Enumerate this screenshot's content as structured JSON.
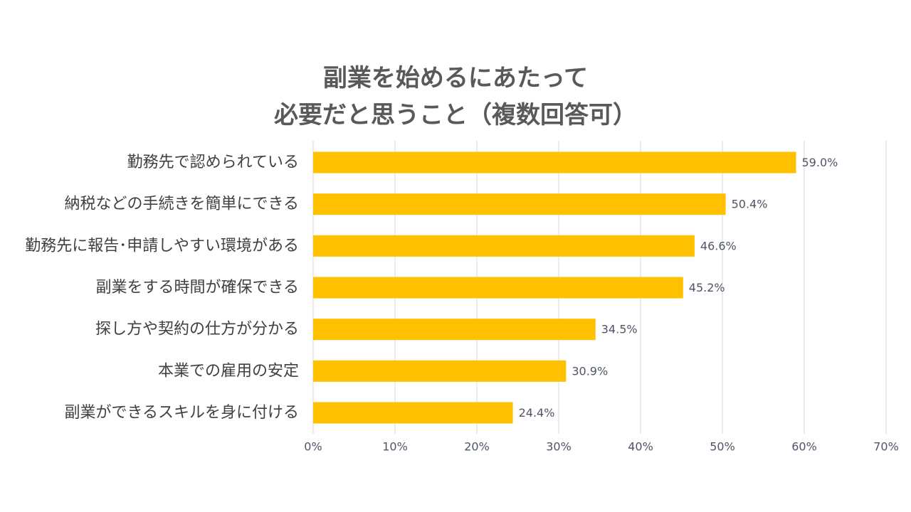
{
  "chart_data": {
    "type": "bar",
    "orientation": "horizontal",
    "title": [
      "副業を始めるにあたって",
      "必要だと思うこと（複数回答可）"
    ],
    "categories": [
      "勤務先で認められている",
      "納税などの手続きを簡単にできる",
      "勤務先に報告･申請しやすい環境がある",
      "副業をする時間が確保できる",
      "探し方や契約の仕方が分かる",
      "本業での雇用の安定",
      "副業ができるスキルを身に付ける"
    ],
    "values": [
      59.0,
      50.4,
      46.6,
      45.2,
      34.5,
      30.9,
      24.4
    ],
    "data_labels": [
      "59.0%",
      "50.4%",
      "46.6%",
      "45.2%",
      "34.5%",
      "30.9%",
      "24.4%"
    ],
    "xlim": [
      0,
      70
    ],
    "xticks": [
      0,
      10,
      20,
      30,
      40,
      50,
      60,
      70
    ],
    "xtick_labels": [
      "0%",
      "10%",
      "20%",
      "30%",
      "40%",
      "50%",
      "60%",
      "70%"
    ],
    "grid": true,
    "legend": false,
    "colors": {
      "bar": "#FFC000",
      "grid": "#D9D9D9",
      "title": "#595959",
      "category_label": "#404040",
      "data_label": "#4D5566",
      "tick_label": "#4D5566"
    }
  }
}
